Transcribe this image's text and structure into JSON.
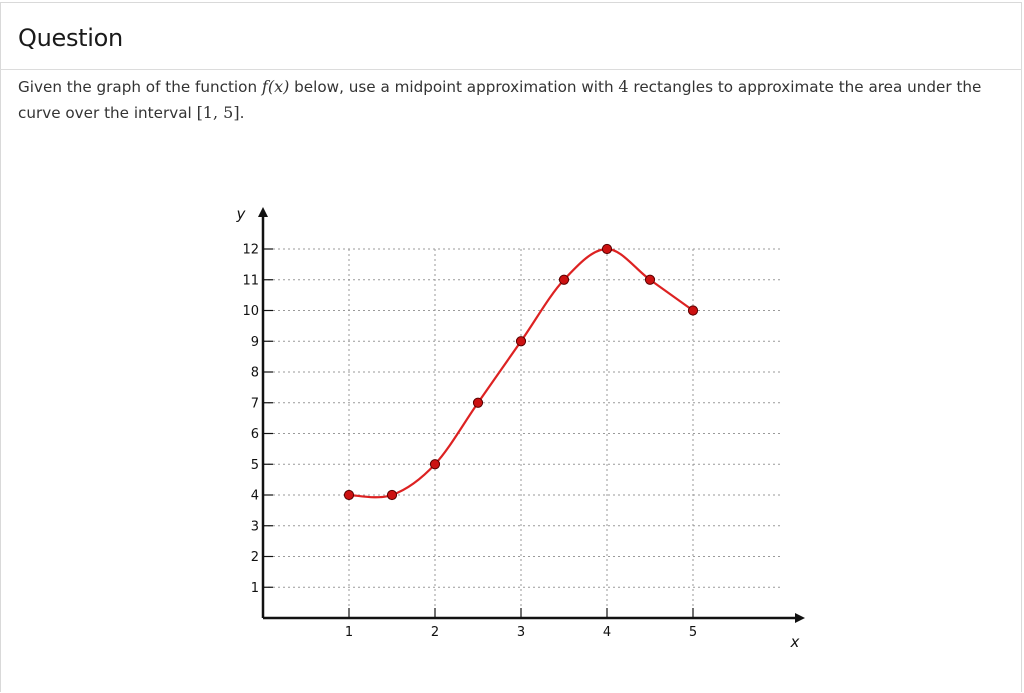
{
  "page": {
    "title": "Question",
    "question_parts": {
      "p1": "Given the graph of the function",
      "func": "f(x)",
      "p2": "below, use a midpoint approximation with",
      "n": "4",
      "p3": "rectangles to approximate the area under the curve over the interval",
      "interval": "[1, 5]",
      "end": "."
    }
  },
  "chart_data": {
    "type": "line",
    "title": "",
    "xlabel": "x",
    "ylabel": "y",
    "xlim": [
      0,
      5.5
    ],
    "ylim": [
      0,
      12
    ],
    "x_ticks": [
      1,
      2,
      3,
      4,
      5
    ],
    "y_ticks": [
      1,
      2,
      3,
      4,
      5,
      6,
      7,
      8,
      9,
      10,
      11,
      12
    ],
    "grid": true,
    "series": [
      {
        "points": [
          {
            "x": 1,
            "y": 4
          },
          {
            "x": 1.5,
            "y": 4
          },
          {
            "x": 2,
            "y": 5
          },
          {
            "x": 2.5,
            "y": 7
          },
          {
            "x": 3,
            "y": 9
          },
          {
            "x": 3.5,
            "y": 11
          },
          {
            "x": 4,
            "y": 12
          },
          {
            "x": 4.5,
            "y": 11
          },
          {
            "x": 5,
            "y": 10
          }
        ],
        "color": "#dd2222",
        "marker_color": "#cc1111"
      }
    ]
  }
}
